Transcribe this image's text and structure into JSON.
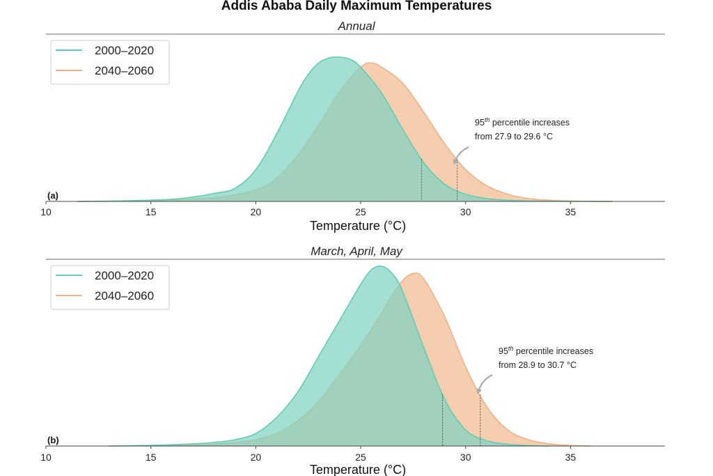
{
  "colors": {
    "series_a": "#64cbb4",
    "series_a_fill": "#7fd3c0",
    "series_b": "#eeb287",
    "series_b_fill": "#f3c6a2",
    "axis": "#555555",
    "arrow": "#aaaaaa"
  },
  "chart_data": {
    "title": "Addis Ababa Daily Maximum Temperatures",
    "type": "area",
    "panels": [
      {
        "panel_label": "(a)",
        "subtitle": "Annual",
        "type": "area",
        "xlabel": "Temperature (°C)",
        "xlim": [
          10,
          39.5
        ],
        "xticks": [
          10,
          15,
          20,
          25,
          30,
          35
        ],
        "tick_labels": [
          "10",
          "15",
          "20",
          "25",
          "30",
          "35"
        ],
        "ylim": [
          0,
          1
        ],
        "legend": {
          "position": "top-left",
          "entries": [
            "2000–2020",
            "2040–2060"
          ]
        },
        "series": [
          {
            "name": "2000–2020",
            "x": [
              11.5,
              14,
              16,
              17,
              18,
              19,
              20,
              21,
              22,
              22.5,
              23,
              23.5,
              24,
              24.5,
              25,
              26,
              27,
              28,
              29,
              30,
              31,
              32,
              33,
              34,
              35,
              36,
              37
            ],
            "y": [
              0.0,
              0.005,
              0.015,
              0.03,
              0.055,
              0.09,
              0.22,
              0.47,
              0.76,
              0.88,
              0.96,
              0.995,
              1.0,
              0.985,
              0.93,
              0.75,
              0.5,
              0.27,
              0.12,
              0.05,
              0.02,
              0.008,
              0.003,
              0.001,
              0.0,
              0.0,
              0.0
            ],
            "p95": 27.9
          },
          {
            "name": "2040–2060",
            "x": [
              11.5,
              14,
              16,
              17,
              18,
              19,
              20,
              21,
              22,
              23,
              24,
              25,
              25.5,
              26,
              27,
              28,
              29,
              30,
              31,
              32,
              33,
              34,
              35,
              36,
              37
            ],
            "y": [
              0.0,
              0.002,
              0.008,
              0.015,
              0.025,
              0.045,
              0.08,
              0.16,
              0.32,
              0.53,
              0.76,
              0.93,
              0.96,
              0.93,
              0.82,
              0.62,
              0.4,
              0.22,
              0.11,
              0.05,
              0.02,
              0.008,
              0.003,
              0.001,
              0.0
            ],
            "p95": 29.6
          }
        ],
        "annotation": {
          "sup": "th",
          "line1_prefix": "95",
          "line1_suffix": " percentile increases",
          "line2": "from 27.9 to 29.6 °C"
        }
      },
      {
        "panel_label": "(b)",
        "subtitle": "March, April, May",
        "type": "area",
        "xlabel": "Temperature (°C)",
        "xlim": [
          10,
          39.5
        ],
        "xticks": [
          10,
          15,
          20,
          25,
          30,
          35
        ],
        "tick_labels": [
          "10",
          "15",
          "20",
          "25",
          "30",
          "35"
        ],
        "ylim": [
          0,
          1
        ],
        "legend": {
          "position": "top-left",
          "entries": [
            "2000–2020",
            "2040–2060"
          ]
        },
        "series": [
          {
            "name": "2000–2020",
            "x": [
              13,
              15,
              17,
              18,
              19,
              20,
              21,
              22,
              23,
              24,
              24.5,
              25,
              25.5,
              26,
              26.5,
              27,
              28,
              29,
              30,
              31,
              32,
              33,
              34
            ],
            "y": [
              0.0,
              0.004,
              0.012,
              0.02,
              0.035,
              0.07,
              0.16,
              0.3,
              0.5,
              0.7,
              0.8,
              0.9,
              0.98,
              1.0,
              0.96,
              0.86,
              0.55,
              0.26,
              0.09,
              0.03,
              0.01,
              0.003,
              0.0
            ],
            "p95": 28.9
          },
          {
            "name": "2040–2060",
            "x": [
              13,
              15,
              17,
              18,
              19,
              20,
              21,
              22,
              23,
              24,
              25,
              26,
              26.5,
              27,
              27.5,
              28,
              29,
              30,
              31,
              32,
              33,
              34,
              35,
              36
            ],
            "y": [
              0.0,
              0.002,
              0.006,
              0.01,
              0.02,
              0.035,
              0.07,
              0.14,
              0.25,
              0.4,
              0.56,
              0.74,
              0.84,
              0.92,
              0.96,
              0.93,
              0.72,
              0.44,
              0.22,
              0.09,
              0.035,
              0.012,
              0.003,
              0.0
            ],
            "p95": 30.7
          }
        ],
        "annotation": {
          "sup": "th",
          "line1_prefix": "95",
          "line1_suffix": " percentile increases",
          "line2": "from 28.9 to 30.7 °C"
        }
      }
    ]
  }
}
